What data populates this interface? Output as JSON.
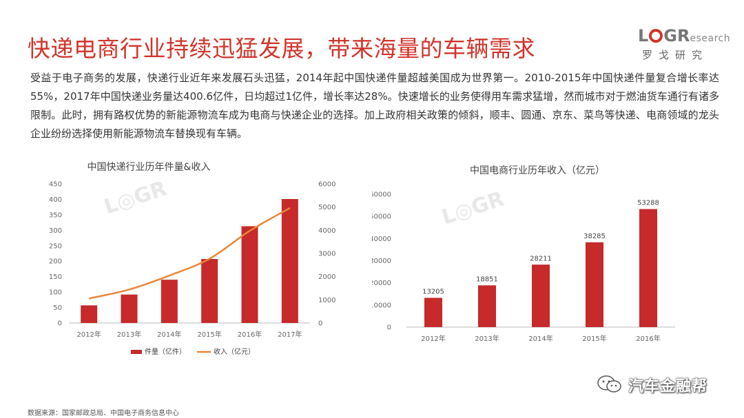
{
  "title": "快递电商行业持续迅猛发展，带来海量的车辆需求",
  "logo": {
    "word_start": "L",
    "word_mid": "G",
    "word_r": "R",
    "word_small": "esearch",
    "cn": "罗戈研究"
  },
  "intro": "受益于电子商务的发展，快递行业近年来发展石头迅猛，2014年起中国快递件量超越美国成为世界第一。2010-2015年中国快递件量复合增长率达55%，2017年中国快递业务量达400.6亿件，日均超过1亿件，增长率达28%。快速增长的业务使得用车需求猛增，然而城市对于燃油货车通行有诸多限制。此时，拥有路权优势的新能源物流车成为电商与快递企业的选择。加上政府相关政策的倾斜，顺丰、圆通、京东、菜鸟等快递、电商领域的龙头企业纷纷选择使用新能源物流车替换现有车辆。",
  "source": "数据来源：国家邮政总局、中国电子商务信息中心",
  "watermark_text": "汽车金融帮",
  "colors": {
    "accent": "#d0352b",
    "bar": "#c62a2a",
    "line": "#e8853a"
  },
  "chart_data": [
    {
      "type": "bar",
      "title": "中国快递行业历年件量&收入",
      "categories": [
        "2012年",
        "2013年",
        "2014年",
        "2015年",
        "2016年",
        "2017年"
      ],
      "series": [
        {
          "name": "件量（亿件）",
          "type": "bar",
          "axis": "left",
          "values": [
            57,
            92,
            140,
            207,
            313,
            401
          ]
        },
        {
          "name": "收入（亿元）",
          "type": "line",
          "axis": "right",
          "values": [
            1055,
            1442,
            2045,
            2770,
            3974,
            4957
          ]
        }
      ],
      "ylim_left": [
        0,
        450
      ],
      "yticks_left": [
        0,
        50,
        100,
        150,
        200,
        250,
        300,
        350,
        400,
        450
      ],
      "ylim_right": [
        0,
        6000
      ],
      "yticks_right": [
        0,
        1000,
        2000,
        3000,
        4000,
        5000,
        6000
      ],
      "grid": false,
      "legend_position": "bottom"
    },
    {
      "type": "bar",
      "title": "中国电商行业历年收入（亿元）",
      "categories": [
        "2012年",
        "2013年",
        "2014年",
        "2015年",
        "2016年"
      ],
      "values": [
        13205,
        18851,
        28211,
        38285,
        53288
      ],
      "data_labels": [
        "13205",
        "18851",
        "28211",
        "38285",
        "53288"
      ],
      "ylim": [
        0,
        60000
      ],
      "yticks": [
        0,
        10000,
        20000,
        30000,
        40000,
        50000,
        60000
      ],
      "grid": false,
      "legend_position": "none"
    }
  ]
}
